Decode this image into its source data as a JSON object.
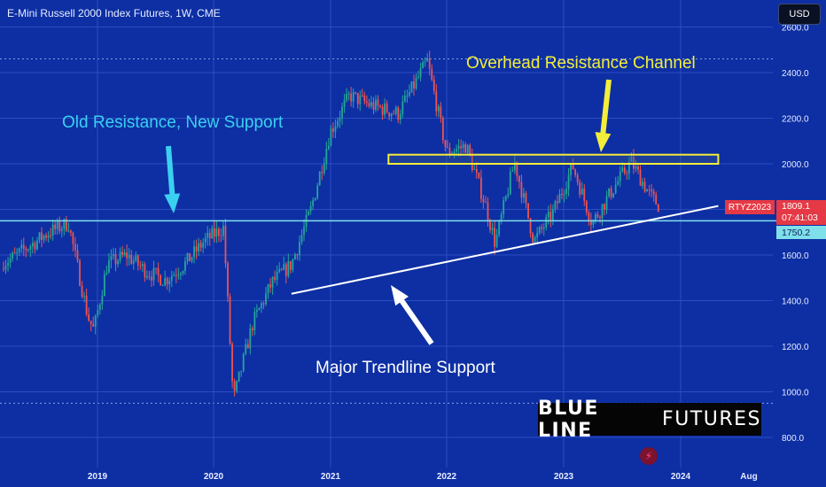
{
  "header": {
    "title": "E-Mini Russell 2000 Index Futures, 1W, CME",
    "currency_button": "USD"
  },
  "annotations": {
    "overhead": "Overhead Resistance Channel",
    "old_resistance": "Old Resistance, New Support",
    "trendline": "Major Trendline Support"
  },
  "brand": {
    "bold": "BLUE LINE",
    "thin": "FUTURES"
  },
  "price_badge": {
    "symbol": "RTYZ2023",
    "price": "1809.1",
    "countdown": "07:41:03",
    "support": "1750.2"
  },
  "colors": {
    "background": "#0d2fa3",
    "up": "#26a69a",
    "down": "#ef5350",
    "support_line": "#7fe0ea",
    "channel": "#f3ee3a"
  },
  "chart_data": {
    "type": "candlestick",
    "title": "E-Mini Russell 2000 Index Futures, 1W, CME",
    "x_ticks": [
      "2019",
      "2020",
      "2021",
      "2022",
      "2023",
      "2024",
      "Aug"
    ],
    "y_ticks": [
      "800.0",
      "1000.0",
      "1200.0",
      "1400.0",
      "1600.0",
      "1800.0",
      "2000.0",
      "2200.0",
      "2400.0",
      "2600.0"
    ],
    "ylim": [
      760,
      2620
    ],
    "last_price": 1809.1,
    "horizontal_support": 1750.2,
    "resistance_channel": {
      "from": "2021-07",
      "to": "2024-05",
      "low": 2000,
      "high": 2040
    },
    "trendline": {
      "from": [
        "2020-09",
        1430
      ],
      "to": [
        "2024-05",
        1815
      ]
    },
    "price_path": [
      [
        "2018-01",
        1540
      ],
      [
        "2018-04",
        1580
      ],
      [
        "2018-08",
        1700
      ],
      [
        "2018-10",
        1740
      ],
      [
        "2018-12",
        1330
      ],
      [
        "2018-12-20",
        1270
      ],
      [
        "2019-02",
        1560
      ],
      [
        "2019-04",
        1600
      ],
      [
        "2019-06",
        1530
      ],
      [
        "2019-08",
        1490
      ],
      [
        "2019-10",
        1560
      ],
      [
        "2019-12",
        1660
      ],
      [
        "2020-02",
        1720
      ],
      [
        "2020-03",
        960
      ],
      [
        "2020-05",
        1300
      ],
      [
        "2020-07",
        1480
      ],
      [
        "2020-09",
        1560
      ],
      [
        "2020-11",
        1800
      ],
      [
        "2021-01",
        2140
      ],
      [
        "2021-03",
        2300
      ],
      [
        "2021-05",
        2260
      ],
      [
        "2021-08",
        2220
      ],
      [
        "2021-11",
        2450
      ],
      [
        "2022-01",
        2050
      ],
      [
        "2022-03",
        2080
      ],
      [
        "2022-05",
        1820
      ],
      [
        "2022-06",
        1650
      ],
      [
        "2022-08",
        2010
      ],
      [
        "2022-10",
        1660
      ],
      [
        "2022-12",
        1790
      ],
      [
        "2023-02",
        1990
      ],
      [
        "2023-04",
        1740
      ],
      [
        "2023-06",
        1880
      ],
      [
        "2023-08",
        2010
      ],
      [
        "2023-10",
        1860
      ],
      [
        "2023-11",
        1809.1
      ]
    ]
  }
}
